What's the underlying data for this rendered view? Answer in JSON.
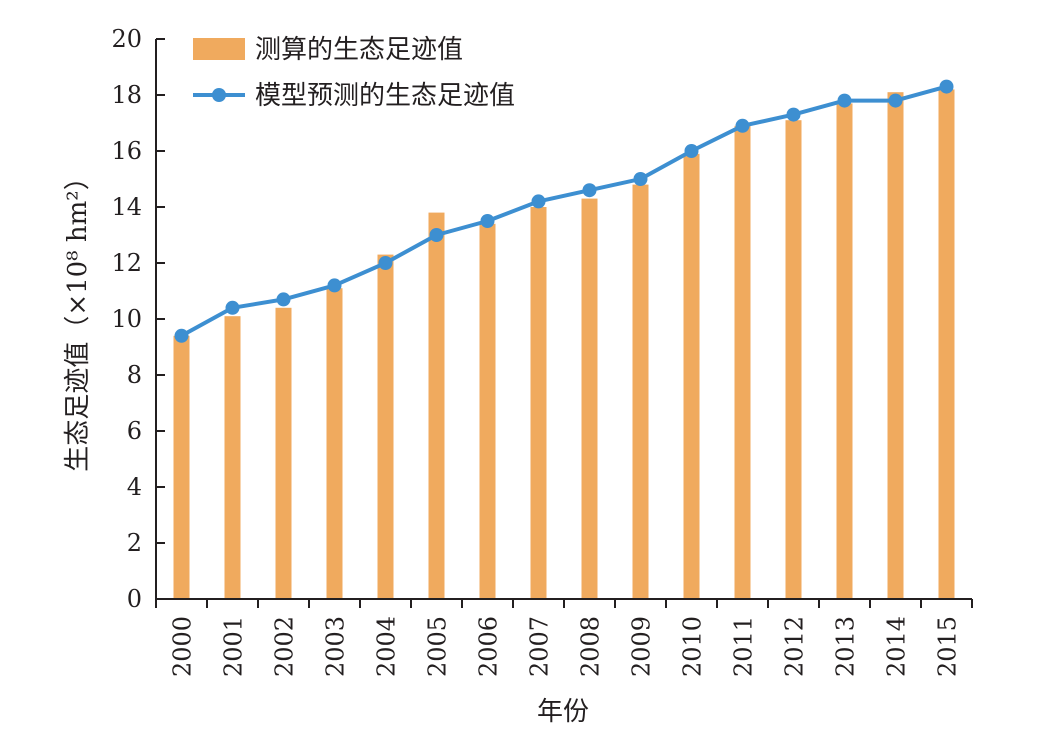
{
  "chart_data": {
    "type": "bar",
    "title": "",
    "xlabel": "年份",
    "ylabel": "生态足迹值（×10⁸ hm²）",
    "ylim": [
      0,
      20
    ],
    "ytick_step": 2,
    "grid": false,
    "legend_position": "top-left",
    "categories": [
      "2000",
      "2001",
      "2002",
      "2003",
      "2004",
      "2005",
      "2006",
      "2007",
      "2008",
      "2009",
      "2010",
      "2011",
      "2012",
      "2013",
      "2014",
      "2015"
    ],
    "series": [
      {
        "name": "测算的生态足迹值",
        "kind": "bar",
        "color": "#f0aa5e",
        "values": [
          9.4,
          10.1,
          10.4,
          11.1,
          12.3,
          13.8,
          13.4,
          14.0,
          14.3,
          14.8,
          15.9,
          16.9,
          17.1,
          17.7,
          18.1,
          18.2
        ]
      },
      {
        "name": "模型预测的生态足迹值",
        "kind": "line",
        "color": "#3d8fd1",
        "values": [
          9.4,
          10.4,
          10.7,
          11.2,
          12.0,
          13.0,
          13.5,
          14.2,
          14.6,
          15.0,
          16.0,
          16.9,
          17.3,
          17.8,
          17.8,
          18.3
        ]
      }
    ]
  }
}
